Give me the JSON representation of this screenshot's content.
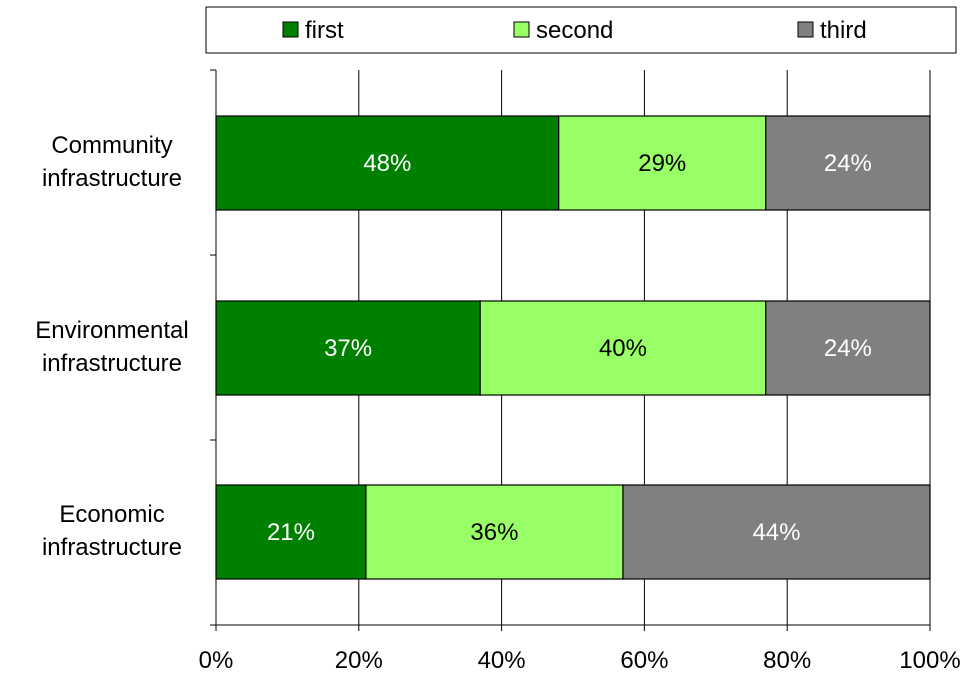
{
  "chart_data": {
    "type": "bar",
    "orientation": "horizontal",
    "stacked": "percent",
    "title": "",
    "xlabel": "",
    "ylabel": "",
    "categories": [
      "Community infrastructure",
      "Environmental infrastructure",
      "Economic infrastructure"
    ],
    "category_lines": [
      [
        "Community",
        "infrastructure"
      ],
      [
        "Environmental",
        "infrastructure"
      ],
      [
        "Economic",
        "infrastructure"
      ]
    ],
    "series": [
      {
        "name": "first",
        "values": [
          48,
          37,
          21
        ],
        "labels": [
          "48%",
          "37%",
          "21%"
        ],
        "color": "#008000",
        "label_color": "#ffffff"
      },
      {
        "name": "second",
        "values": [
          29,
          40,
          36
        ],
        "labels": [
          "29%",
          "40%",
          "36%"
        ],
        "color": "#99ff66",
        "label_color": "#000000"
      },
      {
        "name": "third",
        "values": [
          24,
          24,
          44
        ],
        "labels": [
          "24%",
          "24%",
          "44%"
        ],
        "color": "#808080",
        "label_color": "#ffffff"
      }
    ],
    "xlim": [
      0,
      100
    ],
    "xticks": [
      0,
      20,
      40,
      60,
      80,
      100
    ],
    "xtick_labels": [
      "0%",
      "20%",
      "40%",
      "60%",
      "80%",
      "100%"
    ],
    "grid": "vertical",
    "legend_position": "top"
  }
}
